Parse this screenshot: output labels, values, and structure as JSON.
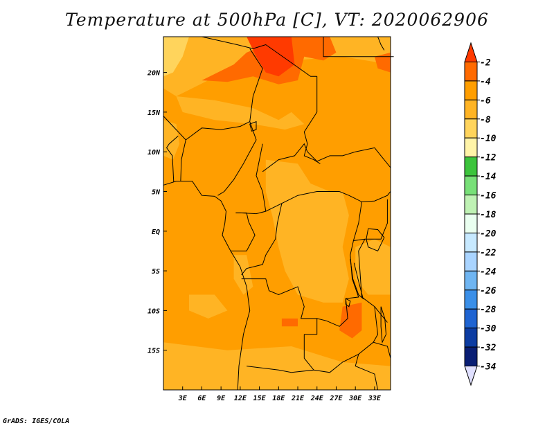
{
  "title": "Temperature at 500hPa [C], VT: 2020062906",
  "credit": "GrADS: IGES/COLA",
  "map": {
    "lon_range": [
      0,
      35.5
    ],
    "lat_range": [
      -20,
      24.5
    ],
    "lon_ticks": [
      {
        "value": 3,
        "label": "3E"
      },
      {
        "value": 6,
        "label": "6E"
      },
      {
        "value": 9,
        "label": "9E"
      },
      {
        "value": 12,
        "label": "12E"
      },
      {
        "value": 15,
        "label": "15E"
      },
      {
        "value": 18,
        "label": "18E"
      },
      {
        "value": 21,
        "label": "21E"
      },
      {
        "value": 24,
        "label": "24E"
      },
      {
        "value": 27,
        "label": "27E"
      },
      {
        "value": 30,
        "label": "30E"
      },
      {
        "value": 33,
        "label": "33E"
      }
    ],
    "lat_ticks": [
      {
        "value": 20,
        "label": "20N"
      },
      {
        "value": 15,
        "label": "15N"
      },
      {
        "value": 10,
        "label": "10N"
      },
      {
        "value": 5,
        "label": "5N"
      },
      {
        "value": 0,
        "label": "EQ"
      },
      {
        "value": -5,
        "label": "5S"
      },
      {
        "value": -10,
        "label": "10S"
      },
      {
        "value": -15,
        "label": "15S"
      }
    ]
  },
  "colorbar": {
    "labels": [
      "-2",
      "-4",
      "-6",
      "-8",
      "-10",
      "-12",
      "-14",
      "-16",
      "-18",
      "-20",
      "-22",
      "-24",
      "-26",
      "-28",
      "-30",
      "-32",
      "-34"
    ],
    "colors": [
      "#ff3a00",
      "#ff6a00",
      "#ff9e00",
      "#ffb424",
      "#ffd45c",
      "#fff4a8",
      "#3cc43c",
      "#78e078",
      "#bff2b4",
      "#eafff0",
      "#c7e9ff",
      "#a9d4ff",
      "#6fb5f2",
      "#3a8fe8",
      "#1f64d2",
      "#0c3ca2",
      "#091e74",
      "#e0e0ff"
    ]
  },
  "features": {
    "fill_colors": {
      "base": "#ff9e00",
      "warm": "#ff6a00",
      "warmest": "#ff3a00",
      "cool": "#ffb424",
      "cooler": "#ffd45c"
    }
  }
}
